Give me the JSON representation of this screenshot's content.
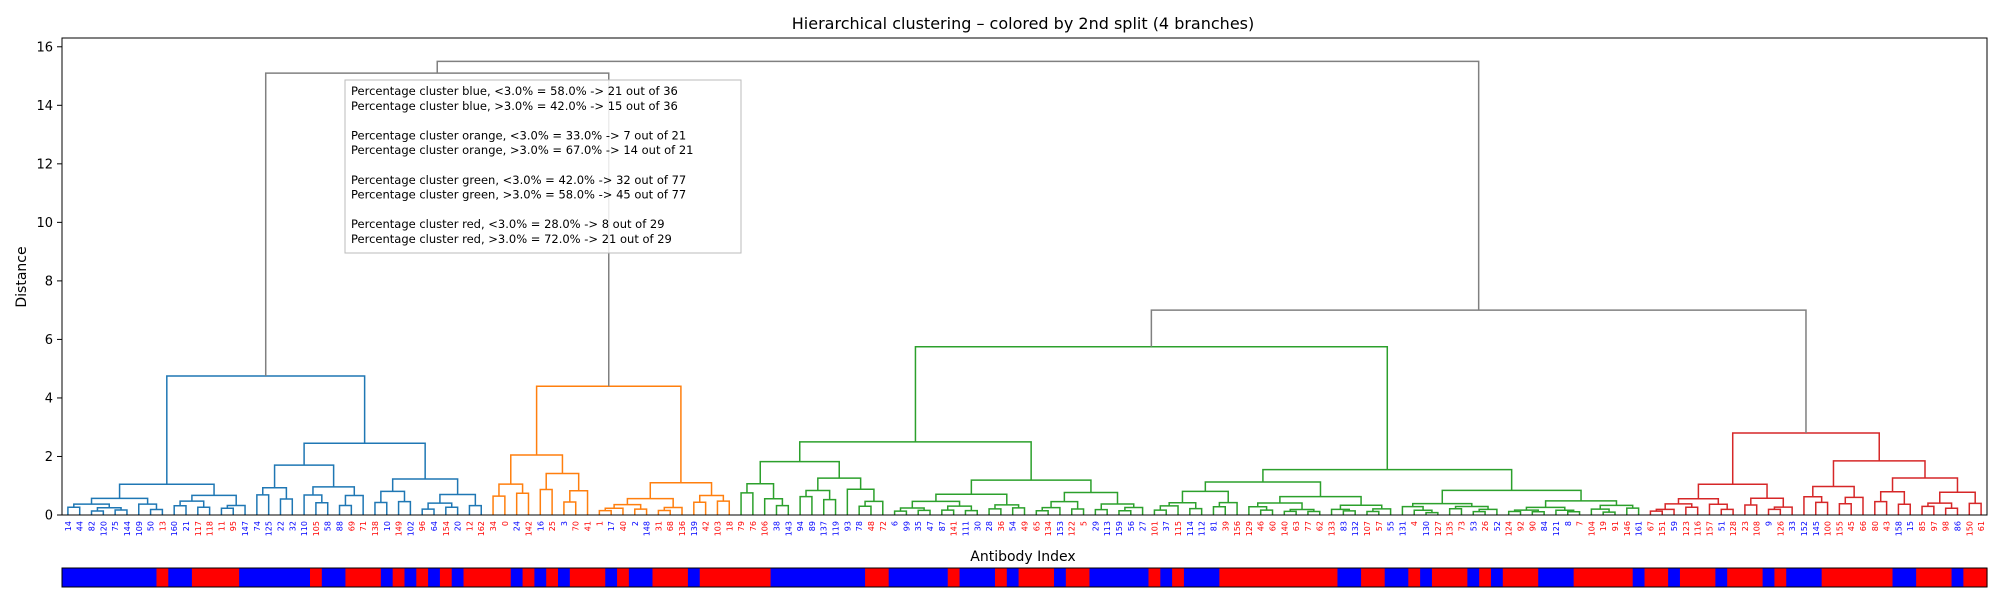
{
  "chart_data": {
    "type": "dendrogram",
    "title": "Hierarchical clustering – colored by 2nd split (4 branches)",
    "xlabel": "Antibody Index",
    "ylabel": "Distance",
    "ylim": [
      0,
      16.3
    ],
    "yticks": [
      0,
      2,
      4,
      6,
      8,
      10,
      12,
      14,
      16
    ],
    "grid": false,
    "colors": {
      "blue": "#1f77b4",
      "orange": "#ff7f0e",
      "green": "#2ca02c",
      "red": "#d62728",
      "link_above": "#808080",
      "label_low": "#0000ff",
      "label_high": "#ff0000"
    },
    "clusters": [
      {
        "name": "blue",
        "merge_height": 4.75,
        "sub_heights": [
          1.05,
          2.45
        ],
        "total": 36,
        "below": 21,
        "above": 15
      },
      {
        "name": "orange",
        "merge_height": 4.4,
        "sub_heights": [
          2.05,
          1.1
        ],
        "total": 21,
        "below": 7,
        "above": 14
      },
      {
        "name": "green",
        "merge_height": 5.75,
        "sub_heights": [
          2.5,
          1.55
        ],
        "total": 77,
        "below": 32,
        "above": 45
      },
      {
        "name": "red",
        "merge_height": 2.8,
        "sub_heights": [
          1.05,
          1.85
        ],
        "total": 29,
        "below": 8,
        "above": 21
      }
    ],
    "top_links": {
      "blue_orange": 15.1,
      "green_red": 7.0,
      "root": 15.5
    },
    "leaves": [
      "14",
      "44",
      "82",
      "120",
      "75",
      "144",
      "109",
      "50",
      "13",
      "160",
      "21",
      "117",
      "118",
      "11",
      "95",
      "147",
      "74",
      "125",
      "22",
      "32",
      "110",
      "105",
      "58",
      "88",
      "69",
      "71",
      "138",
      "10",
      "149",
      "102",
      "96",
      "64",
      "154",
      "20",
      "12",
      "162",
      "34",
      "0",
      "24",
      "142",
      "16",
      "25",
      "3",
      "70",
      "41",
      "1",
      "17",
      "40",
      "2",
      "148",
      "31",
      "68",
      "136",
      "139",
      "42",
      "103",
      "18",
      "79",
      "76",
      "106",
      "38",
      "143",
      "94",
      "89",
      "137",
      "119",
      "93",
      "78",
      "48",
      "72",
      "6",
      "99",
      "35",
      "47",
      "87",
      "141",
      "111",
      "30",
      "28",
      "36",
      "54",
      "49",
      "65",
      "134",
      "153",
      "122",
      "5",
      "29",
      "113",
      "159",
      "56",
      "27",
      "101",
      "37",
      "115",
      "114",
      "112",
      "81",
      "39",
      "156",
      "129",
      "46",
      "60",
      "140",
      "63",
      "77",
      "62",
      "133",
      "83",
      "132",
      "107",
      "57",
      "55",
      "131",
      "4",
      "130",
      "127",
      "135",
      "73",
      "53",
      "26",
      "52",
      "124",
      "92",
      "90",
      "84",
      "121",
      "8",
      "7",
      "104",
      "19",
      "91",
      "146",
      "161",
      "67",
      "151",
      "59",
      "123",
      "116",
      "157",
      "51",
      "128",
      "23",
      "108",
      "9",
      "126",
      "33",
      "152",
      "145",
      "100",
      "155",
      "45",
      "66",
      "80",
      "43",
      "158",
      "15",
      "85",
      "97",
      "98",
      "86",
      "150",
      "61"
    ],
    "leaf_category": "BBBBBBBBRBBRRRRBBBBBBRBBRRRBRBRBRBRRRRBRBRBRRRBRBBRRRBRRRRRRBBBBBBBBRRBBBBBRBBBRBRRRBRRBBBBBRBRBBBRRRRRRRRRRBBRRBBRBRRRBRBRRRBBBRRRRRBRRBRRRBRRRBRBBBRRRRRRBBRRRBRRRRBBRRRRRRRRRRRRRRRRRR"
  },
  "legend": {
    "lines": [
      "Percentage cluster blue, <3.0% = 58.0%  -> 21  out of 36",
      "Percentage cluster blue, >3.0% = 42.0%  -> 15  out of 36",
      "",
      "Percentage cluster orange, <3.0% = 33.0%  -> 7  out of 21",
      "Percentage cluster orange, >3.0% = 67.0%  -> 14  out of 21",
      "",
      "Percentage cluster green, <3.0% = 42.0%  -> 32  out of 77",
      "Percentage cluster green, >3.0% = 58.0%  -> 45  out of 77",
      "",
      "Percentage cluster red, <3.0% = 28.0%  -> 8  out of 29",
      "Percentage cluster red, >3.0% = 72.0%  -> 21  out of 29"
    ]
  }
}
